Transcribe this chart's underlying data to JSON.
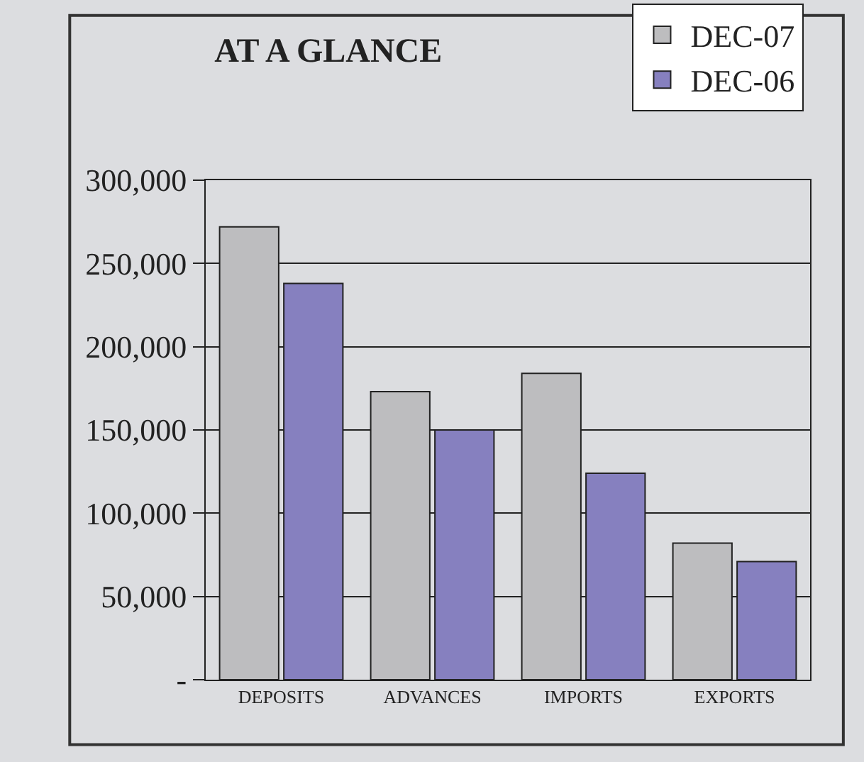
{
  "chart_data": {
    "type": "bar",
    "title": "AT A GLANCE",
    "categories": [
      "DEPOSITS",
      "ADVANCES",
      "IMPORTS",
      "EXPORTS"
    ],
    "series": [
      {
        "name": "DEC-07",
        "color": "#bdbdbf",
        "values": [
          272000,
          173000,
          184000,
          82000
        ]
      },
      {
        "name": "DEC-06",
        "color": "#8680bf",
        "values": [
          238000,
          150000,
          124000,
          71000
        ]
      }
    ],
    "ylim": [
      0,
      300000
    ],
    "yticks": [
      {
        "value": 0,
        "label": "-"
      },
      {
        "value": 50000,
        "label": "50,000"
      },
      {
        "value": 100000,
        "label": "100,000"
      },
      {
        "value": 150000,
        "label": "150,000"
      },
      {
        "value": 200000,
        "label": "200,000"
      },
      {
        "value": 250000,
        "label": "250,000"
      },
      {
        "value": 300000,
        "label": "300,000"
      }
    ],
    "grid": "y",
    "legend": "top right"
  }
}
